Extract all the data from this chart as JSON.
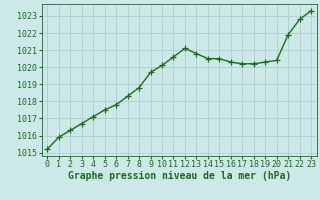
{
  "x": [
    0,
    1,
    2,
    3,
    4,
    5,
    6,
    7,
    8,
    9,
    10,
    11,
    12,
    13,
    14,
    15,
    16,
    17,
    18,
    19,
    20,
    21,
    22,
    23
  ],
  "y": [
    1015.2,
    1015.9,
    1016.3,
    1016.7,
    1017.1,
    1017.5,
    1017.8,
    1018.3,
    1018.8,
    1019.7,
    1020.1,
    1020.6,
    1021.1,
    1020.8,
    1020.5,
    1020.5,
    1020.3,
    1020.2,
    1020.2,
    1020.3,
    1020.4,
    1021.9,
    1022.8,
    1023.3
  ],
  "line_color": "#1a6e1a",
  "marker": "+",
  "marker_color": "#1a6e1a",
  "bg_color": "#cce8e8",
  "grid_color": "#aacfcf",
  "xlabel": "Graphe pression niveau de la mer (hPa)",
  "xlabel_color": "#1a6e1a",
  "tick_color": "#1a6e1a",
  "ylim_min": 1014.8,
  "ylim_max": 1023.7,
  "xlim_min": -0.5,
  "xlim_max": 23.5,
  "yticks": [
    1015,
    1016,
    1017,
    1018,
    1019,
    1020,
    1021,
    1022,
    1023
  ],
  "xticks": [
    0,
    1,
    2,
    3,
    4,
    5,
    6,
    7,
    8,
    9,
    10,
    11,
    12,
    13,
    14,
    15,
    16,
    17,
    18,
    19,
    20,
    21,
    22,
    23
  ],
  "xtick_labels": [
    "0",
    "1",
    "2",
    "3",
    "4",
    "5",
    "6",
    "7",
    "8",
    "9",
    "10",
    "11",
    "12",
    "13",
    "14",
    "15",
    "16",
    "17",
    "18",
    "19",
    "20",
    "21",
    "22",
    "23"
  ],
  "ytick_labels": [
    "1015",
    "1016",
    "1017",
    "1018",
    "1019",
    "1020",
    "1021",
    "1022",
    "1023"
  ],
  "line_width": 1.0,
  "marker_size": 4,
  "tick_fontsize": 6,
  "xlabel_fontsize": 7
}
